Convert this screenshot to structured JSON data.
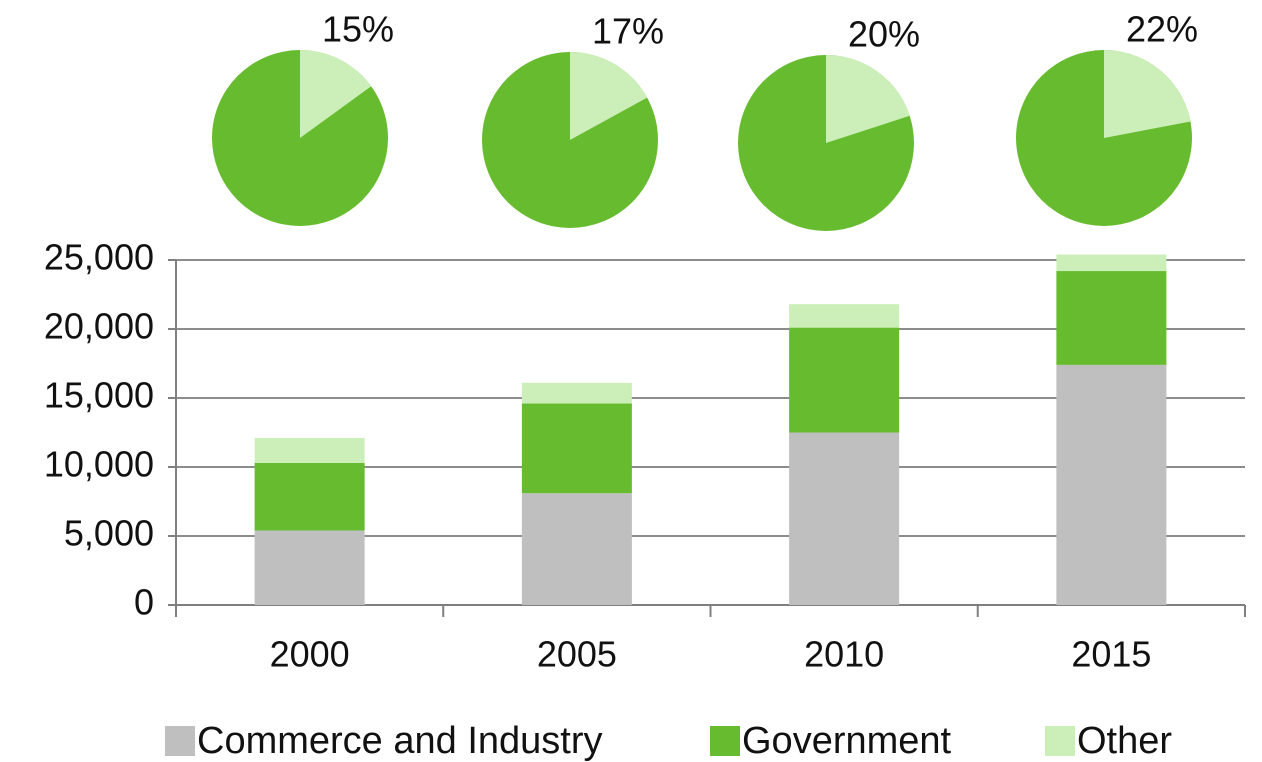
{
  "chart_data": [
    {
      "type": "bar",
      "stacked": true,
      "categories": [
        "2000",
        "2005",
        "2010",
        "2015"
      ],
      "series": [
        {
          "name": "Commerce and Industry",
          "color": "#bfbfbf",
          "values": [
            5400,
            8100,
            12500,
            17400
          ]
        },
        {
          "name": "Government",
          "color": "#66bb2e",
          "values": [
            4900,
            6500,
            7600,
            6800
          ]
        },
        {
          "name": "Other",
          "color": "#ccefb9",
          "values": [
            1800,
            1500,
            1700,
            1200
          ]
        }
      ],
      "ylim": [
        0,
        25000
      ],
      "yticks": [
        0,
        {
          "value": 5000,
          "label": "5,000"
        },
        {
          "value": 10000,
          "label": "10,000"
        },
        {
          "value": 15000,
          "label": "15,000"
        },
        {
          "value": 20000,
          "label": "20,000"
        },
        {
          "value": 25000,
          "label": "25,000"
        }
      ],
      "grid": true,
      "legend": "bottom"
    },
    {
      "type": "pie",
      "values": [
        15
      ],
      "value_labels": [
        "15%"
      ],
      "color": "#ccefb9"
    },
    {
      "type": "pie",
      "values": [
        17
      ],
      "value_labels": [
        "17%"
      ],
      "color": "#ccefb9"
    },
    {
      "type": "pie",
      "values": [
        20
      ],
      "value_labels": [
        "20%"
      ],
      "color": "#ccefb9"
    },
    {
      "type": "pie",
      "values": [
        22
      ],
      "value_labels": [
        "22%"
      ],
      "color": "#ccefb9"
    }
  ]
}
